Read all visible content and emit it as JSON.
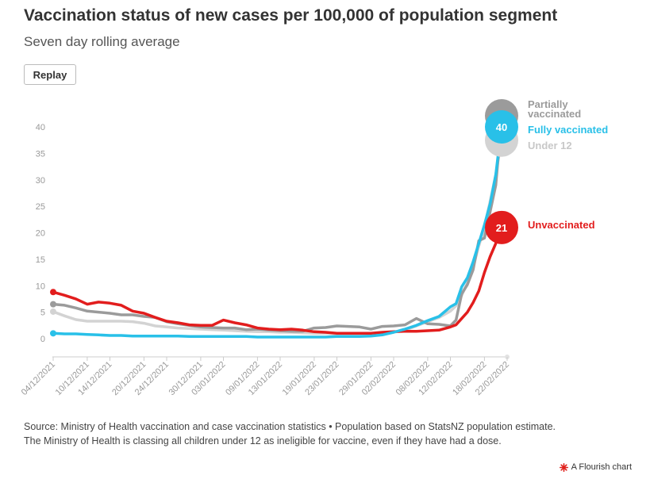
{
  "header": {
    "title": "Vaccination status of new cases per 100,000 of population segment",
    "subtitle": "Seven day rolling average",
    "replay_label": "Replay"
  },
  "footer": {
    "source_line1": "Source: Ministry of Health vaccination and case vaccination statistics • Population based on StatsNZ population estimate.",
    "source_line2": "The Ministry of Health is classing all children under 12 as ineligible for vaccine, even if they have had a dose.",
    "credit": "A Flourish chart",
    "credit_color": "#e0201b"
  },
  "chart_data": {
    "type": "line",
    "title": "Vaccination status of new cases per 100,000 of population segment",
    "subtitle": "Seven day rolling average",
    "xlabel": "",
    "ylabel": "",
    "ylim": [
      0,
      40
    ],
    "yticks": [
      0,
      5,
      10,
      15,
      20,
      25,
      30,
      35,
      40
    ],
    "grid": false,
    "legend": "end-of-line labels",
    "x_start": "04/12/2021",
    "x_end": "22/02/2022",
    "xtick_labels": [
      "04/12/2021",
      "10/12/2021",
      "14/12/2021",
      "20/12/2021",
      "24/12/2021",
      "30/12/2021",
      "03/01/2022",
      "09/01/2022",
      "13/01/2022",
      "19/01/2022",
      "23/01/2022",
      "29/01/2022",
      "02/02/2022",
      "08/02/2022",
      "12/02/2022",
      "18/02/2022",
      "22/02/2022"
    ],
    "xtick_day_offsets": [
      0,
      6,
      10,
      16,
      20,
      26,
      30,
      36,
      40,
      46,
      50,
      56,
      60,
      66,
      70,
      76,
      80
    ],
    "x": [
      0,
      2,
      4,
      6,
      8,
      10,
      12,
      14,
      16,
      18,
      20,
      22,
      24,
      26,
      28,
      30,
      32,
      34,
      36,
      38,
      40,
      42,
      44,
      46,
      48,
      50,
      52,
      54,
      56,
      58,
      60,
      62,
      64,
      66,
      68,
      70,
      71,
      72,
      73,
      74,
      75,
      76,
      77,
      78,
      79
    ],
    "series": [
      {
        "name": "Partially vaccinated",
        "color": "#9b9b9b",
        "end_label": "Partially vaccinated",
        "values": [
          6.5,
          6.3,
          5.8,
          5.2,
          5.0,
          4.8,
          4.5,
          4.5,
          4.2,
          4.0,
          3.2,
          2.8,
          2.5,
          2.2,
          2.1,
          2.0,
          2.0,
          1.7,
          1.8,
          1.6,
          1.5,
          1.4,
          1.4,
          2.0,
          2.1,
          2.4,
          2.3,
          2.2,
          1.8,
          2.3,
          2.4,
          2.6,
          3.8,
          2.8,
          2.7,
          2.4,
          3.5,
          8.5,
          10.2,
          13.0,
          18.5,
          19.0,
          24.0,
          29.0,
          41.5
        ],
        "end_value": 41.5
      },
      {
        "name": "Fully vaccinated",
        "color": "#29c0e8",
        "end_label": "Fully vaccinated",
        "values": [
          1.0,
          0.9,
          0.9,
          0.8,
          0.7,
          0.6,
          0.6,
          0.5,
          0.5,
          0.5,
          0.5,
          0.5,
          0.4,
          0.4,
          0.4,
          0.4,
          0.4,
          0.4,
          0.3,
          0.3,
          0.3,
          0.3,
          0.3,
          0.3,
          0.3,
          0.4,
          0.4,
          0.4,
          0.5,
          0.7,
          1.2,
          1.8,
          2.5,
          3.4,
          4.2,
          6.0,
          6.6,
          9.8,
          11.5,
          14.5,
          18.0,
          21.5,
          25.5,
          31.0,
          40.0
        ],
        "end_value": 40
      },
      {
        "name": "Under 12",
        "color": "#d3d3d3",
        "end_label": "Under 12",
        "values": [
          5.1,
          4.3,
          3.6,
          3.3,
          3.3,
          3.3,
          3.3,
          3.2,
          2.9,
          2.4,
          2.2,
          2.0,
          1.9,
          1.8,
          1.7,
          1.6,
          1.5,
          1.4,
          1.3,
          1.3,
          1.2,
          1.2,
          1.1,
          1.0,
          1.0,
          0.9,
          0.9,
          0.8,
          0.8,
          0.9,
          1.2,
          1.6,
          2.4,
          3.2,
          4.0,
          5.2,
          6.2,
          8.2,
          10.5,
          13.5,
          17.5,
          21.0,
          26.0,
          31.0,
          37.5
        ],
        "end_value": 37.5
      },
      {
        "name": "Unvaccinated",
        "color": "#e21d1d",
        "end_label": "Unvaccinated",
        "values": [
          8.8,
          8.2,
          7.5,
          6.5,
          6.9,
          6.7,
          6.3,
          5.2,
          4.8,
          4.0,
          3.3,
          3.0,
          2.6,
          2.5,
          2.5,
          3.5,
          3.0,
          2.6,
          2.0,
          1.8,
          1.7,
          1.8,
          1.6,
          1.3,
          1.2,
          1.0,
          1.0,
          1.0,
          1.0,
          1.2,
          1.3,
          1.4,
          1.4,
          1.5,
          1.6,
          2.2,
          2.6,
          3.8,
          5.0,
          6.8,
          9.0,
          12.5,
          15.5,
          18.0,
          21.0
        ],
        "end_value": 21
      }
    ]
  }
}
